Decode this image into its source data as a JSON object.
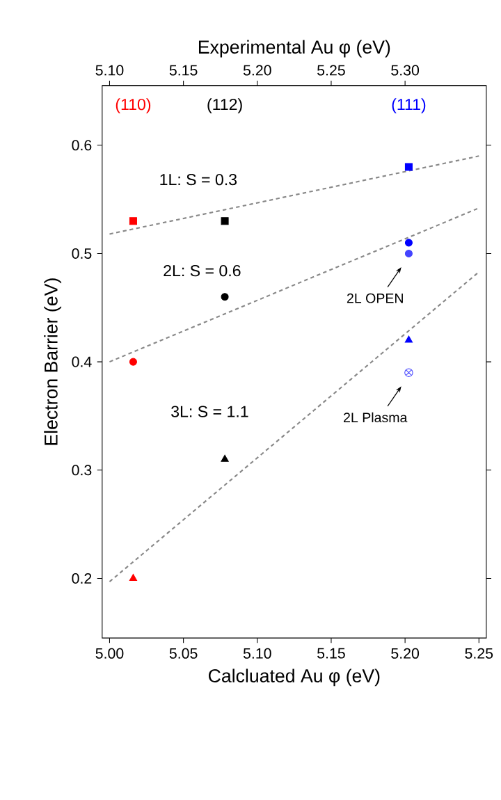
{
  "chart_data": {
    "type": "scatter",
    "xlabel": "Calcluated Au φ (eV)",
    "ylabel": "Electron Barrier (eV)",
    "x2label": "Experimental Au φ (eV)",
    "xlim": [
      4.995,
      5.255
    ],
    "ylim": [
      0.145,
      0.655
    ],
    "x2lim": [
      5.095,
      5.355
    ],
    "xticks": [
      {
        "value": 5.0,
        "label": "5.00"
      },
      {
        "value": 5.05,
        "label": "5.05"
      },
      {
        "value": 5.1,
        "label": "5.10"
      },
      {
        "value": 5.15,
        "label": "5.15"
      },
      {
        "value": 5.2,
        "label": "5.20"
      },
      {
        "value": 5.25,
        "label": "5.25"
      }
    ],
    "x2ticks": [
      {
        "value": 5.1,
        "label": "5.10"
      },
      {
        "value": 5.15,
        "label": "5.15"
      },
      {
        "value": 5.2,
        "label": "5.20"
      },
      {
        "value": 5.25,
        "label": "5.25"
      },
      {
        "value": 5.3,
        "label": "5.30"
      }
    ],
    "yticks": [
      0.2,
      0.3,
      0.4,
      0.5,
      0.6
    ],
    "series": [
      {
        "type": "line",
        "x": [
          5.0,
          5.25
        ],
        "values": [
          0.518,
          0.59
        ],
        "color": "#888888",
        "line_style": "dashed"
      },
      {
        "type": "line",
        "x": [
          5.0,
          5.25
        ],
        "values": [
          0.4,
          0.542
        ],
        "color": "#888888",
        "line_style": "dashed"
      },
      {
        "type": "line",
        "x": [
          5.0,
          5.25
        ],
        "values": [
          0.197,
          0.483
        ],
        "color": "#888888",
        "line_style": "dashed"
      },
      {
        "marker": "square",
        "x": [
          5.016,
          5.078,
          5.2025
        ],
        "values": [
          0.53,
          0.53,
          0.58
        ],
        "colors": [
          "#ff0000",
          "#000000",
          "#0000ff"
        ]
      },
      {
        "marker": "circle",
        "x": [
          5.016,
          5.078,
          5.2025
        ],
        "values": [
          0.4,
          0.46,
          0.51
        ],
        "colors": [
          "#ff0000",
          "#000000",
          "#0000ff"
        ]
      },
      {
        "marker": "triangle",
        "x": [
          5.016,
          5.078,
          5.2025
        ],
        "values": [
          0.2,
          0.31,
          0.42
        ],
        "colors": [
          "#ff0000",
          "#000000",
          "#0000ff"
        ]
      },
      {
        "marker": "circle",
        "name": "2L OPEN",
        "x": [
          5.2025
        ],
        "values": [
          0.5
        ],
        "color": "#4444ff"
      },
      {
        "marker": "cross",
        "name": "2L Plasma",
        "x": [
          5.2025
        ],
        "values": [
          0.39
        ],
        "color": "#4444ff"
      }
    ],
    "annotations": [
      "(110)",
      "(112)",
      "(111)",
      "1L: S = 0.3",
      "2L: S = 0.6",
      "3L: S = 1.1"
    ]
  }
}
